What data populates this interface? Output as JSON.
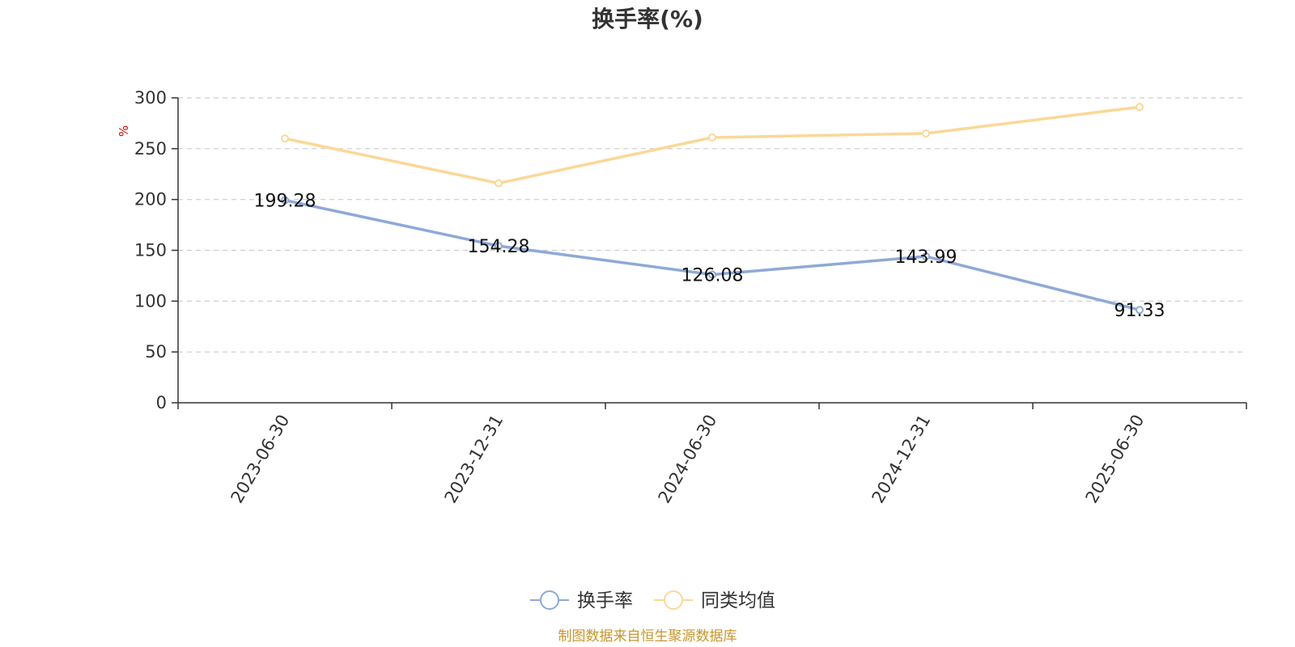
{
  "chart_data": {
    "type": "line",
    "title": "换手率(%)",
    "ylabel": "%",
    "xlabel": "",
    "ylim": [
      0,
      300
    ],
    "yticks": [
      0,
      50,
      100,
      150,
      200,
      250,
      300
    ],
    "grid": true,
    "legend_position": "bottom",
    "categories": [
      "2023-06-30",
      "2023-12-31",
      "2024-06-30",
      "2024-12-31",
      "2025-06-30"
    ],
    "series": [
      {
        "name": "换手率",
        "color": "#8ea9d8",
        "values": [
          199.28,
          154.28,
          126.08,
          143.99,
          91.33
        ],
        "labels": [
          "199.28",
          "154.28",
          "126.08",
          "143.99",
          "91.33"
        ]
      },
      {
        "name": "同类均值",
        "color": "#fad896",
        "values": [
          260,
          216,
          261,
          265,
          291
        ]
      }
    ],
    "source": "制图数据来自恒生聚源数据库"
  }
}
